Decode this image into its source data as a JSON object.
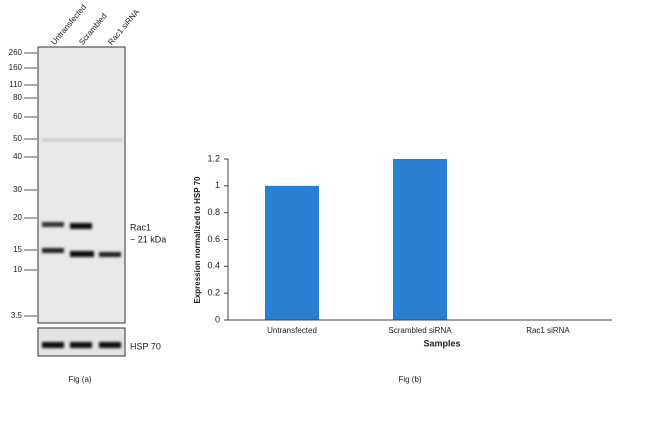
{
  "blot": {
    "lanes": [
      "Untransfected",
      "Scrambled",
      "Rac1 siRNA"
    ],
    "markers": [
      "260",
      "160",
      "110",
      "80",
      "60",
      "50",
      "40",
      "30",
      "20",
      "15",
      "10",
      "3.5"
    ],
    "band_label": "Rac1",
    "band_size": "~ 21 kDa",
    "loading_control": "HSP 70",
    "caption": "Fig (a)"
  },
  "chart_data": {
    "type": "bar",
    "categories": [
      "Untransfected",
      "Scrambled siRNA",
      "Rac1 siRNA"
    ],
    "values": [
      1,
      1.2,
      0
    ],
    "color": "#2a7fd3",
    "ylim": [
      0,
      1.2
    ],
    "yticks": [
      0,
      0.2,
      0.4,
      0.6,
      0.8,
      1,
      1.2
    ],
    "x_label": "Samples",
    "y_label": "Expression  normalized to HSP 70",
    "caption": "Fig (b)"
  }
}
